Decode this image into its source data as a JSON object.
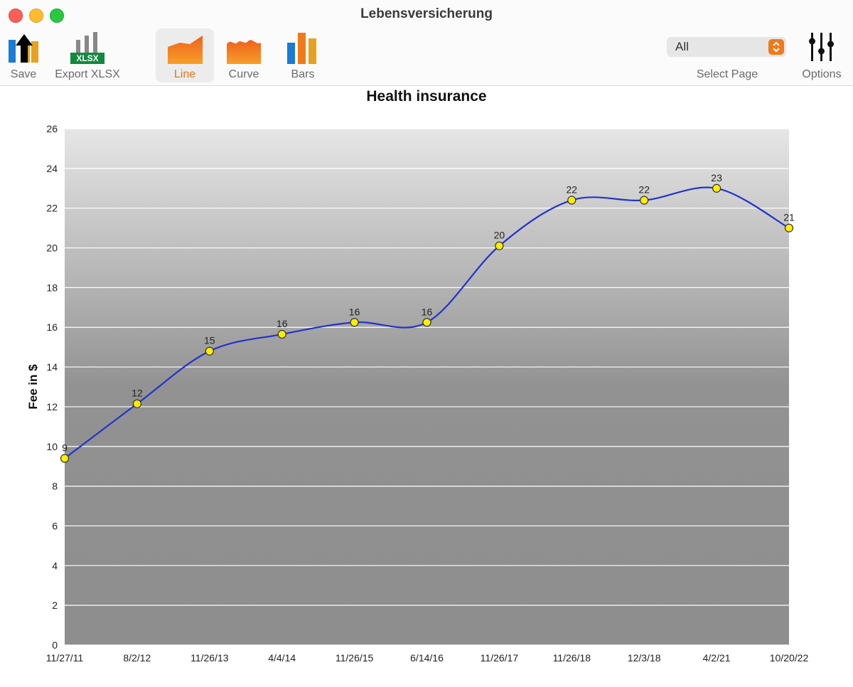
{
  "window": {
    "title": "Lebensversicherung"
  },
  "toolbar": {
    "save_label": "Save",
    "export_label": "Export XLSX",
    "export_badge": "XLSX",
    "line_label": "Line",
    "curve_label": "Curve",
    "bars_label": "Bars",
    "select_value": "All",
    "select_label": "Select Page",
    "options_label": "Options"
  },
  "colors": {
    "accent": "#e8741b",
    "line": "#2233cc",
    "marker": "#ffee00"
  },
  "chart_data": {
    "type": "line",
    "title": "Health insurance",
    "xlabel": "",
    "ylabel": "Fee in $",
    "ylim": [
      0,
      26
    ],
    "yticks": [
      0,
      2,
      4,
      6,
      8,
      10,
      12,
      14,
      16,
      18,
      20,
      22,
      24,
      26
    ],
    "categories": [
      "11/27/11",
      "8/2/12",
      "11/26/13",
      "4/4/14",
      "11/26/15",
      "6/14/16",
      "11/26/17",
      "11/26/18",
      "12/3/18",
      "4/2/21",
      "10/20/22"
    ],
    "values": [
      9.4,
      12.15,
      14.8,
      15.65,
      16.25,
      16.25,
      20.1,
      22.4,
      22.4,
      23.0,
      21.0
    ],
    "data_labels": [
      "9",
      "12",
      "15",
      "16",
      "16",
      "16",
      "20",
      "22",
      "22",
      "23",
      "21"
    ],
    "grid": true,
    "legend": "none"
  }
}
